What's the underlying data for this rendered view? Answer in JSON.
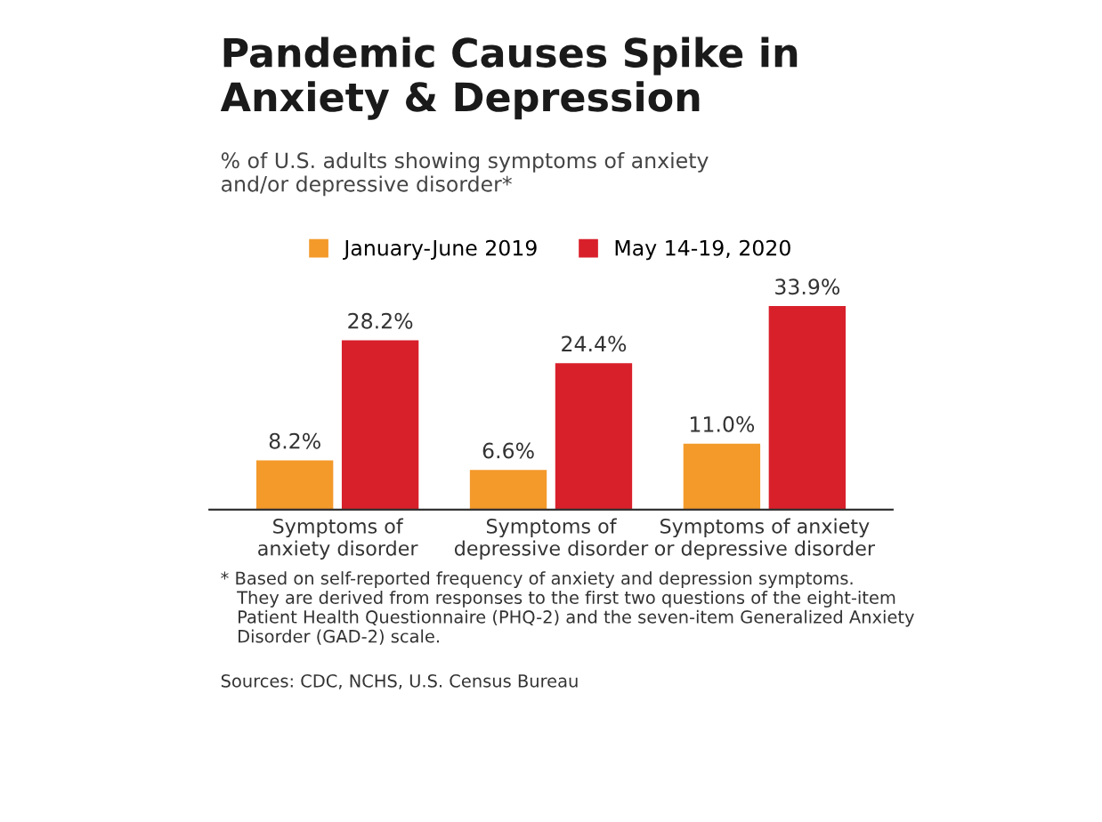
{
  "chart_data": {
    "type": "bar",
    "title": "Pandemic Causes Spike in\nAnxiety & Depression",
    "subtitle": "% of U.S. adults showing symptoms of anxiety\nand/or depressive disorder*",
    "categories": [
      "Symptoms of\nanxiety disorder",
      "Symptoms of\ndepressive disorder",
      "Symptoms of anxiety\nor depressive disorder"
    ],
    "series": [
      {
        "name": "January-June 2019",
        "color": "#f39a2b",
        "values": [
          8.2,
          6.6,
          11.0
        ],
        "value_labels": [
          "8.2%",
          "6.6%",
          "11.0%"
        ]
      },
      {
        "name": "May 14-19, 2020",
        "color": "#d8202b",
        "values": [
          28.2,
          24.4,
          33.9
        ],
        "value_labels": [
          "28.2%",
          "24.4%",
          "33.9%"
        ]
      }
    ],
    "legend": "top",
    "grid": false,
    "annotations": [
      "* Based on self-reported frequency of anxiety and depression symptoms.\n   They are derived from responses to the first two questions of the eight-item\n   Patient Health Questionnaire (PHQ-2) and the seven-item Generalized Anxiety\n   Disorder (GAD-2) scale.",
      "Sources: CDC, NCHS, U.S. Census Bureau"
    ]
  }
}
